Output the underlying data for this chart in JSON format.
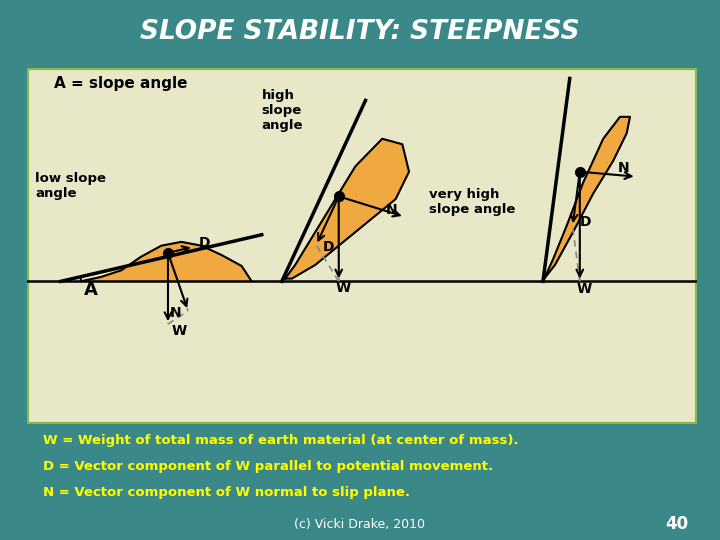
{
  "title": "SLOPE STABILITY: STEEPNESS",
  "title_color": "#FFFFFF",
  "title_bg": "#1a7070",
  "slide_bg": "#3a8888",
  "diagram_bg": "#e8e8c8",
  "diagram_border": "#88bb44",
  "label_A_eq": "A = slope angle",
  "label_low": "low slope\nangle",
  "label_high": "high\nslope\nangle",
  "label_very_high": "very high\nslope angle",
  "label_A": "A",
  "bottom_text_1": "W = Weight of total mass of earth material (at center of mass).",
  "bottom_text_2": "D = Vector component of W parallel to potential movement.",
  "bottom_text_3": "N = Vector component of W normal to slip plane.",
  "bottom_text_color": "#FFFF00",
  "credit": "(c) Vicki Drake, 2010",
  "page_num": "40",
  "credit_color": "#FFFFFF",
  "earth_color": "#f0a840",
  "earth_edge": "#000000",
  "arrow_color": "#000000",
  "dashed_color": "#888888"
}
